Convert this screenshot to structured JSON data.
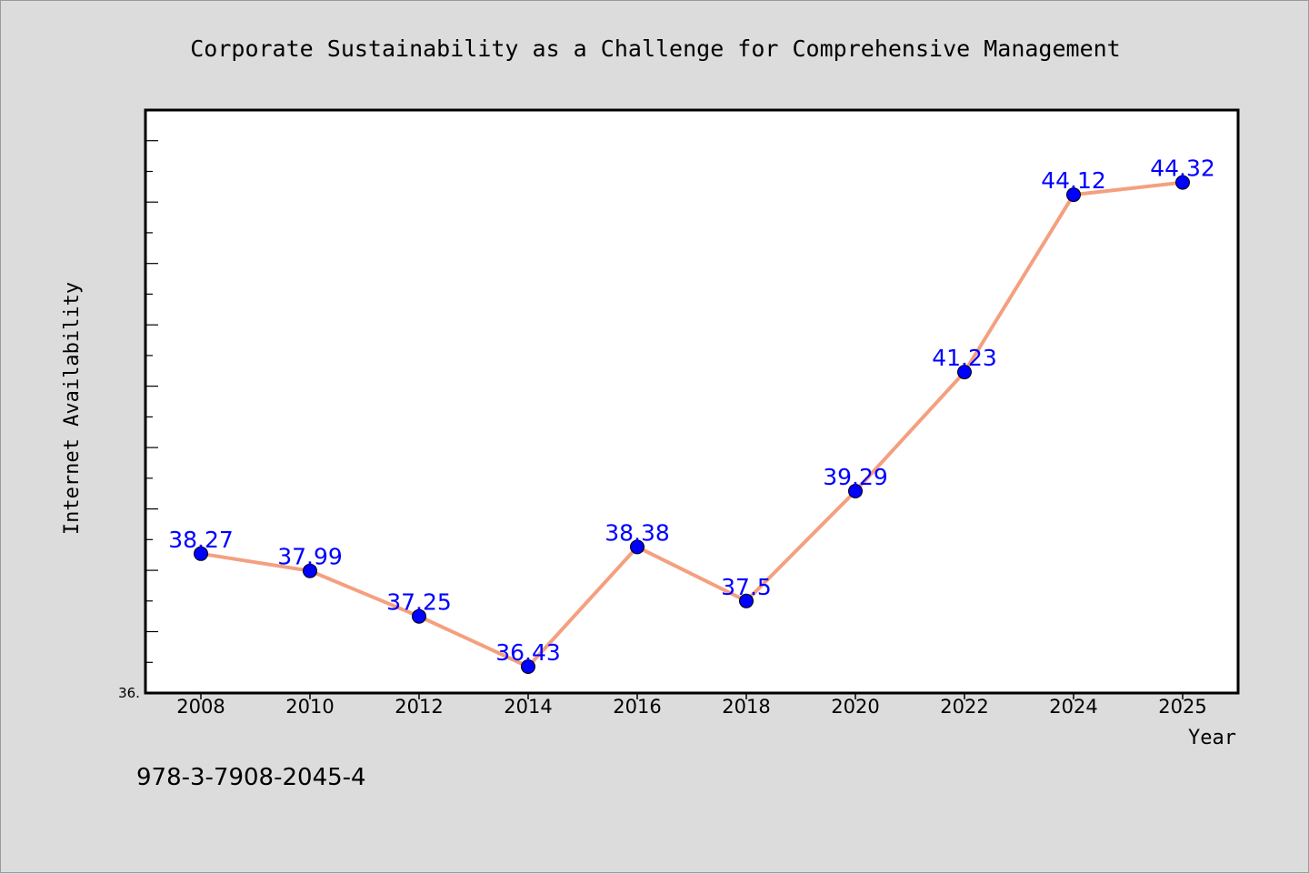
{
  "chart_data": {
    "type": "line",
    "title": "Corporate Sustainability as a Challenge for Comprehensive Management",
    "xlabel": "Year",
    "ylabel": "Internet Availability",
    "categories": [
      "2008",
      "2010",
      "2012",
      "2014",
      "2016",
      "2018",
      "2020",
      "2022",
      "2024",
      "2025"
    ],
    "series": [
      {
        "values": [
          38.27,
          37.99,
          37.25,
          36.43,
          38.38,
          37.5,
          39.29,
          41.23,
          44.12,
          44.32
        ]
      }
    ],
    "data_labels": [
      "38.27",
      "37.99",
      "37.25",
      "36.43",
      "38.38",
      "37.5",
      "39.29",
      "41.23",
      "44.12",
      "44.32"
    ],
    "ylim": [
      36.0,
      45.5
    ],
    "ytick_labels": [
      "36."
    ],
    "grid": false,
    "line_color": "#f4a07f",
    "marker_color": "#0000ff",
    "label_color": "#0000ff",
    "background_color": "#dcdcdc",
    "plot_background_color": "#ffffff"
  },
  "footer": {
    "isbn": "978-3-7908-2045-4"
  }
}
